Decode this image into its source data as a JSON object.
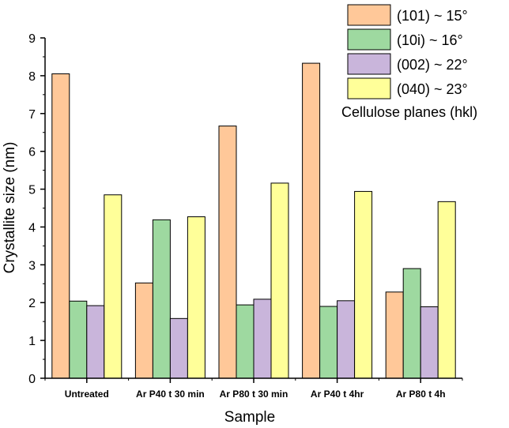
{
  "chart_data": {
    "type": "bar",
    "xlabel": "Sample",
    "ylabel": "Crystallite size (nm)",
    "ylim": [
      0,
      9
    ],
    "yticks": [
      0,
      1,
      2,
      3,
      4,
      5,
      6,
      7,
      8,
      9
    ],
    "categories": [
      "Untreated",
      "Ar P40 t 30 min",
      "Ar P80 t 30 min",
      "Ar P40 t 4hr",
      "Ar P80 t 4h"
    ],
    "legend_title": "Cellulose planes (hkl)",
    "legend_position": "top-right",
    "grid": false,
    "series": [
      {
        "name": "(101) ~ 15°",
        "color": "#FFC899",
        "values": [
          8.05,
          2.52,
          6.67,
          8.33,
          2.28
        ]
      },
      {
        "name": "(10i)  ~ 16°",
        "color": "#9ED9A0",
        "values": [
          2.04,
          4.19,
          1.94,
          1.9,
          2.9
        ]
      },
      {
        "name": "(002) ~ 22°",
        "color": "#C9B5DB",
        "values": [
          1.92,
          1.58,
          2.09,
          2.05,
          1.89
        ]
      },
      {
        "name": "(040) ~ 23°",
        "color": "#FFFF99",
        "values": [
          4.85,
          4.27,
          5.16,
          4.94,
          4.67
        ]
      }
    ]
  }
}
